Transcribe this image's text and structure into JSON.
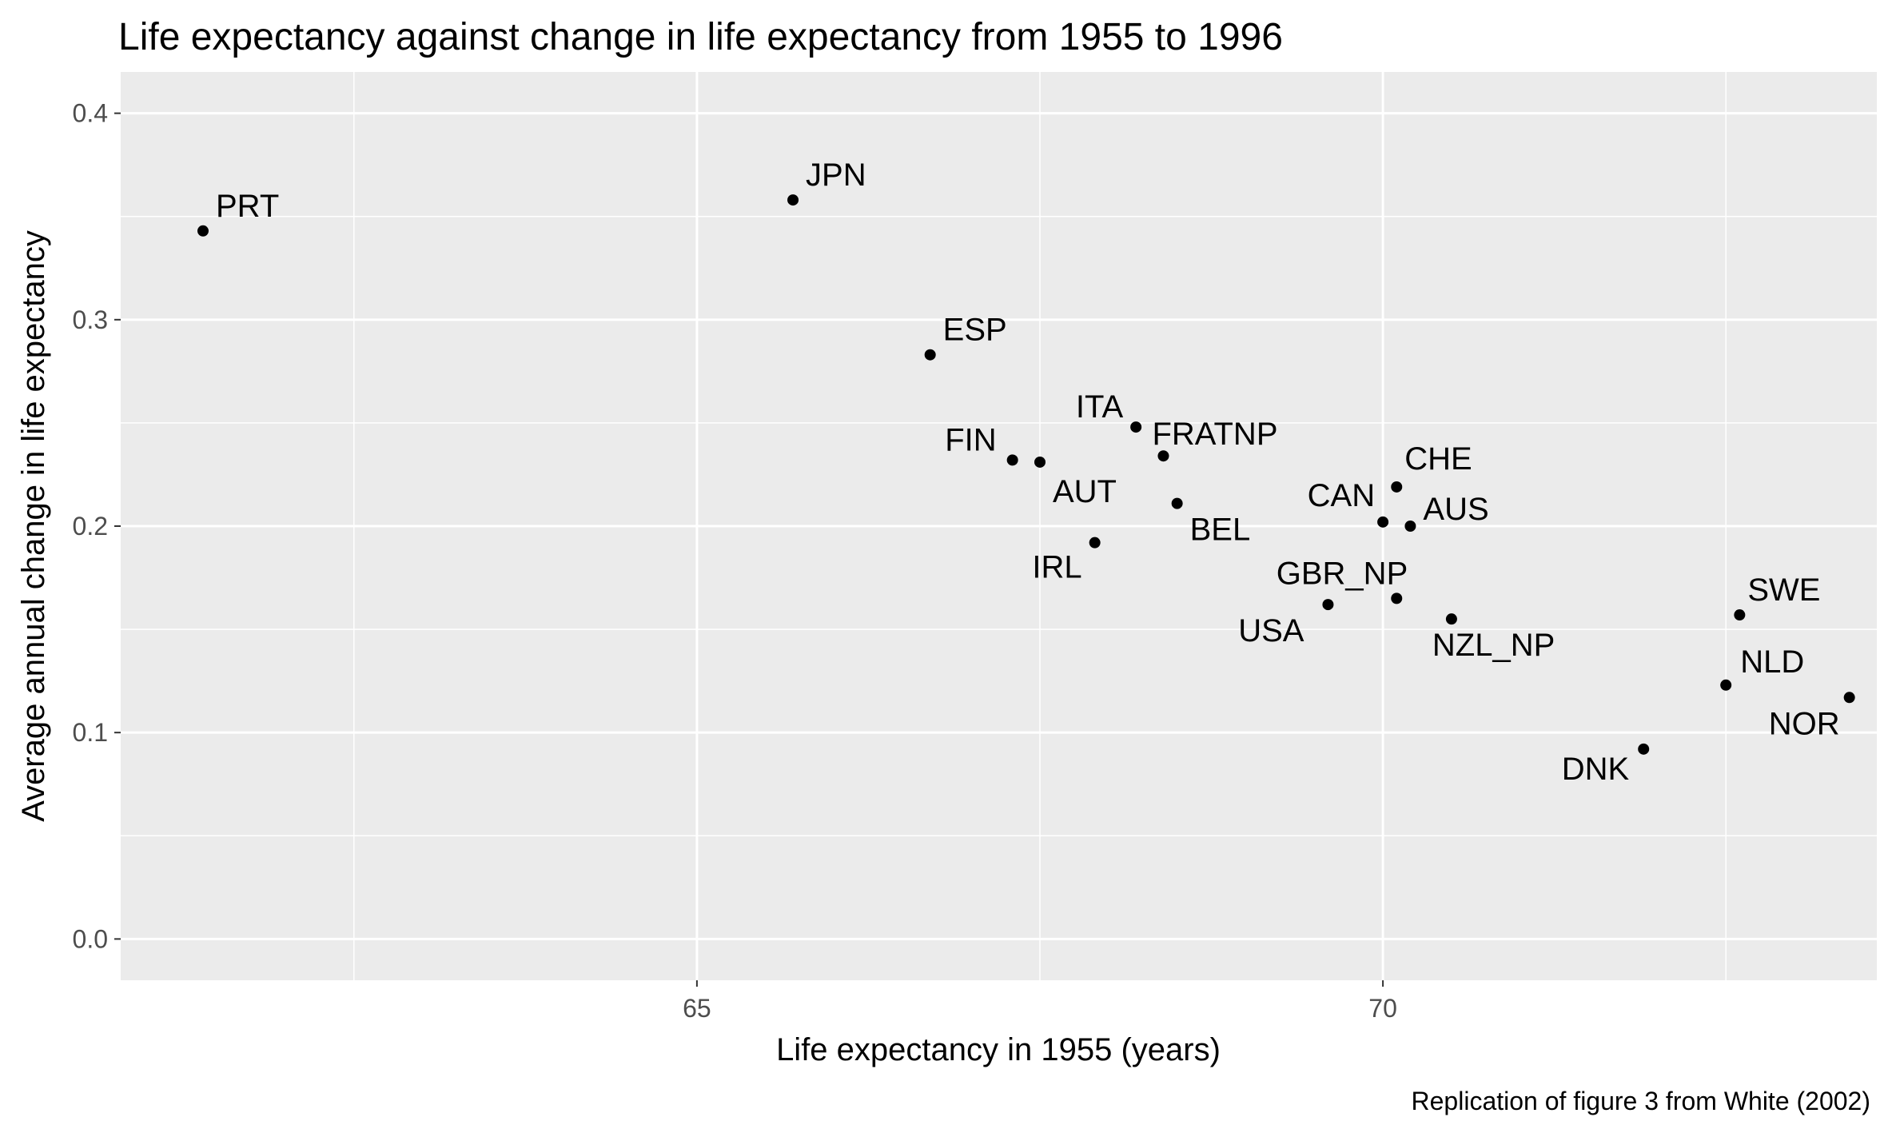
{
  "chart_data": {
    "type": "scatter",
    "title": "Life expectancy against change in life expectancy from 1955 to 1996",
    "xlabel": "Life expectancy in 1955 (years)",
    "ylabel": "Average annual change in life expectancy",
    "caption": "Replication of figure 3 from White (2002)",
    "xlim": [
      60.8,
      73.6
    ],
    "ylim": [
      -0.02,
      0.42
    ],
    "x_ticks": [
      65,
      70
    ],
    "x_tick_labels": [
      "65",
      "70"
    ],
    "y_ticks": [
      0.0,
      0.1,
      0.2,
      0.3,
      0.4
    ],
    "y_tick_labels": [
      "0.0",
      "0.1",
      "0.2",
      "0.3",
      "0.4"
    ],
    "grid": true,
    "point_color": "#000000",
    "panel_background": "#ebebeb",
    "points": [
      {
        "label": "PRT",
        "x": 61.4,
        "y": 0.343
      },
      {
        "label": "JPN",
        "x": 65.7,
        "y": 0.358
      },
      {
        "label": "ESP",
        "x": 66.7,
        "y": 0.283
      },
      {
        "label": "FIN",
        "x": 67.3,
        "y": 0.232
      },
      {
        "label": "AUT",
        "x": 67.5,
        "y": 0.231
      },
      {
        "label": "ITA",
        "x": 68.2,
        "y": 0.248
      },
      {
        "label": "FRATNP",
        "x": 68.4,
        "y": 0.234
      },
      {
        "label": "BEL",
        "x": 68.5,
        "y": 0.211
      },
      {
        "label": "IRL",
        "x": 67.9,
        "y": 0.192
      },
      {
        "label": "CHE",
        "x": 70.1,
        "y": 0.219
      },
      {
        "label": "CAN",
        "x": 70.0,
        "y": 0.202
      },
      {
        "label": "AUS",
        "x": 70.2,
        "y": 0.2
      },
      {
        "label": "GBR_NP",
        "x": 70.1,
        "y": 0.165
      },
      {
        "label": "USA",
        "x": 69.6,
        "y": 0.162
      },
      {
        "label": "NZL_NP",
        "x": 70.5,
        "y": 0.155
      },
      {
        "label": "SWE",
        "x": 72.6,
        "y": 0.157
      },
      {
        "label": "NLD",
        "x": 72.5,
        "y": 0.123
      },
      {
        "label": "NOR",
        "x": 73.4,
        "y": 0.117
      },
      {
        "label": "DNK",
        "x": 71.9,
        "y": 0.092
      }
    ]
  }
}
